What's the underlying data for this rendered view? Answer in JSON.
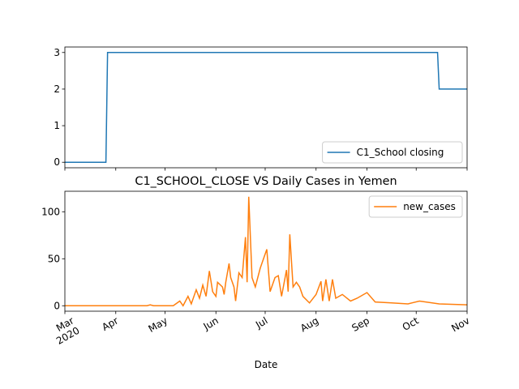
{
  "chart_data": [
    {
      "type": "line",
      "series": [
        {
          "name": "C1_School closing",
          "color": "#1f77b4",
          "x": [
            "2020-03-01",
            "2020-03-26",
            "2020-03-27",
            "2020-10-14",
            "2020-10-15",
            "2020-11-01"
          ],
          "values": [
            0,
            0,
            3,
            3,
            2,
            2
          ]
        }
      ],
      "xlim": [
        "2020-03-01",
        "2020-11-01"
      ],
      "xticks": [
        "2020-03-01",
        "2020-04-01",
        "2020-05-01",
        "2020-06-01",
        "2020-07-01",
        "2020-08-01",
        "2020-09-01",
        "2020-10-01",
        "2020-11-01"
      ],
      "ylim": [
        -0.15,
        3.15
      ],
      "yticks": [
        0,
        1,
        2,
        3
      ],
      "legend": "lower right"
    },
    {
      "type": "line",
      "title": "C1_SCHOOL_CLOSE VS Daily Cases in Yemen",
      "x_label": "Date",
      "series": [
        {
          "name": "new_cases",
          "color": "#ff7f0e",
          "x": [
            "2020-03-01",
            "2020-04-20",
            "2020-04-22",
            "2020-04-24",
            "2020-05-06",
            "2020-05-10",
            "2020-05-12",
            "2020-05-15",
            "2020-05-17",
            "2020-05-20",
            "2020-05-22",
            "2020-05-24",
            "2020-05-26",
            "2020-05-28",
            "2020-05-30",
            "2020-06-01",
            "2020-06-02",
            "2020-06-05",
            "2020-06-06",
            "2020-06-07",
            "2020-06-09",
            "2020-06-10",
            "2020-06-12",
            "2020-06-13",
            "2020-06-15",
            "2020-06-17",
            "2020-06-19",
            "2020-06-20",
            "2020-06-21",
            "2020-06-23",
            "2020-06-25",
            "2020-06-28",
            "2020-07-02",
            "2020-07-04",
            "2020-07-07",
            "2020-07-09",
            "2020-07-11",
            "2020-07-14",
            "2020-07-15",
            "2020-07-16",
            "2020-07-18",
            "2020-07-20",
            "2020-07-22",
            "2020-07-24",
            "2020-07-28",
            "2020-08-01",
            "2020-08-04",
            "2020-08-05",
            "2020-08-07",
            "2020-08-09",
            "2020-08-11",
            "2020-08-13",
            "2020-08-17",
            "2020-08-22",
            "2020-08-26",
            "2020-09-01",
            "2020-09-06",
            "2020-09-16",
            "2020-09-26",
            "2020-10-03",
            "2020-10-15",
            "2020-11-01"
          ],
          "values": [
            0,
            0,
            1,
            0,
            0,
            5,
            0,
            10,
            2,
            17,
            8,
            22,
            10,
            37,
            15,
            10,
            25,
            20,
            12,
            25,
            45,
            30,
            20,
            5,
            35,
            30,
            73,
            25,
            116,
            30,
            20,
            40,
            60,
            15,
            30,
            32,
            10,
            38,
            15,
            76,
            20,
            25,
            20,
            10,
            3,
            12,
            26,
            5,
            28,
            5,
            28,
            8,
            12,
            5,
            8,
            14,
            4,
            3,
            2,
            5,
            2,
            1
          ]
        }
      ],
      "xlim": [
        "2020-03-01",
        "2020-11-01"
      ],
      "xticks": [
        {
          "value": "2020-03-01",
          "label": "Mar\n2020"
        },
        {
          "value": "2020-04-01",
          "label": "Apr"
        },
        {
          "value": "2020-05-01",
          "label": "May"
        },
        {
          "value": "2020-06-01",
          "label": "Jun"
        },
        {
          "value": "2020-07-01",
          "label": "Jul"
        },
        {
          "value": "2020-08-01",
          "label": "Aug"
        },
        {
          "value": "2020-09-01",
          "label": "Sep"
        },
        {
          "value": "2020-10-01",
          "label": "Oct"
        },
        {
          "value": "2020-11-01",
          "label": "Nov"
        }
      ],
      "ylim": [
        -5.8,
        121.8
      ],
      "yticks": [
        0,
        50,
        100
      ],
      "legend": "upper right"
    }
  ]
}
